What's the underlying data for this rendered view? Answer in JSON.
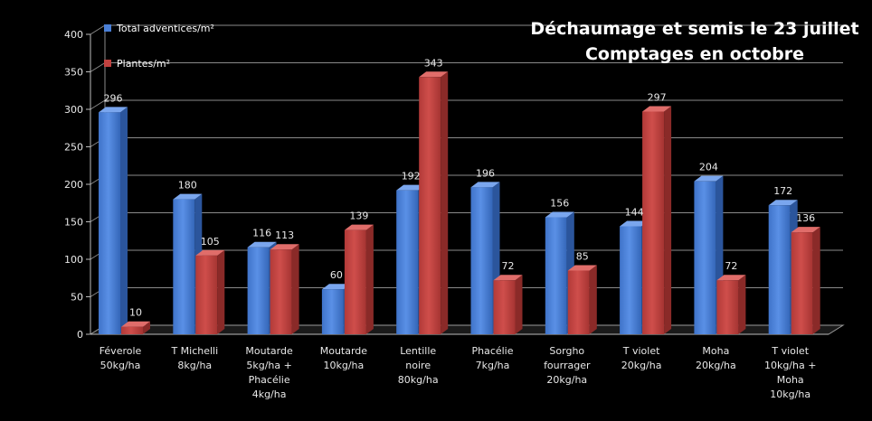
{
  "chart_data": {
    "type": "bar",
    "title": "Déchaumage et semis le 23 juillet",
    "subtitle": "Comptages en octobre",
    "categories": [
      [
        "Féverole",
        "50kg/ha"
      ],
      [
        "T Michelli",
        "8kg/ha"
      ],
      [
        "Moutarde",
        "5kg/ha +",
        "Phacélie",
        "4kg/ha"
      ],
      [
        "Moutarde",
        "10kg/ha"
      ],
      [
        "Lentille",
        "noire",
        "80kg/ha"
      ],
      [
        "Phacélie",
        "7kg/ha"
      ],
      [
        "Sorgho",
        "fourrager",
        "20kg/ha"
      ],
      [
        "T violet",
        "20kg/ha"
      ],
      [
        "Moha",
        "20kg/ha"
      ],
      [
        "T violet",
        "10kg/ha +",
        "Moha",
        "10kg/ha"
      ]
    ],
    "series": [
      {
        "name": "Total adventices/m²",
        "color": "#4a7fd6",
        "values": [
          296,
          180,
          116,
          60,
          192,
          196,
          156,
          144,
          204,
          172
        ]
      },
      {
        "name": "Plantes/m²",
        "color": "#c0413f",
        "values": [
          10,
          105,
          113,
          139,
          343,
          72,
          85,
          297,
          72,
          136
        ]
      }
    ],
    "xlabel": "",
    "ylabel": "",
    "ylim": [
      0,
      400
    ],
    "yticks": [
      0,
      50,
      100,
      150,
      200,
      250,
      300,
      350,
      400
    ],
    "grid": true,
    "legend": "top-left"
  }
}
